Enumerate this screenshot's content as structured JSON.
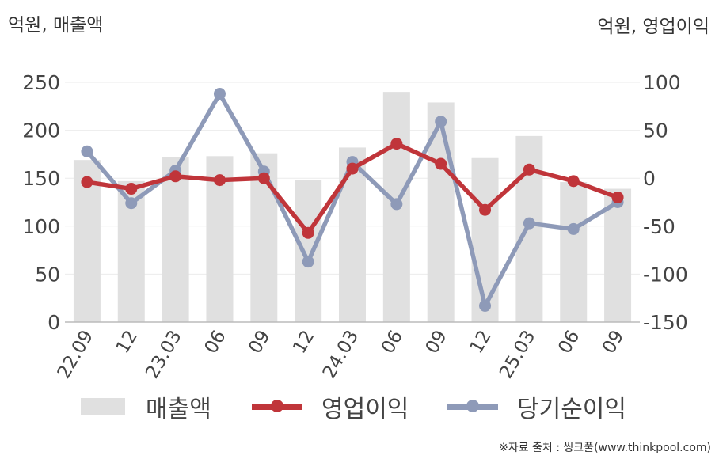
{
  "chart_data": {
    "type": "bar+line",
    "left_axis_title": "억원, 매출액",
    "right_axis_title": "억원, 영업이익",
    "categories": [
      "22.09",
      "12",
      "23.03",
      "06",
      "09",
      "12",
      "24.03",
      "06",
      "09",
      "12",
      "25.03",
      "06",
      "09"
    ],
    "left_ylim": [
      0,
      250
    ],
    "left_ticks": [
      0,
      50,
      100,
      150,
      200,
      250
    ],
    "right_ylim": [
      -150,
      100
    ],
    "right_ticks": [
      -150,
      -100,
      -50,
      0,
      50,
      100
    ],
    "grid": true,
    "series": [
      {
        "name": "매출액",
        "type": "bar",
        "axis": "left",
        "color": "#e0e0e0",
        "values": [
          169,
          147,
          172,
          173,
          176,
          148,
          182,
          240,
          229,
          171,
          194,
          146,
          139
        ]
      },
      {
        "name": "영업이익",
        "type": "line",
        "axis": "right",
        "color": "#c0353a",
        "values": [
          -4,
          -11,
          2,
          -2,
          0,
          -57,
          10,
          36,
          15,
          -33,
          9,
          -3,
          -20
        ]
      },
      {
        "name": "당기순이익",
        "type": "line",
        "axis": "right",
        "color": "#8e9ab8",
        "values": [
          28,
          -26,
          8,
          88,
          7,
          -87,
          17,
          -27,
          59,
          -133,
          -47,
          -53,
          -25
        ]
      }
    ],
    "legend_position": "bottom"
  },
  "source_note": "※자료 출처 : 씽크풀(www.thinkpool.com)"
}
